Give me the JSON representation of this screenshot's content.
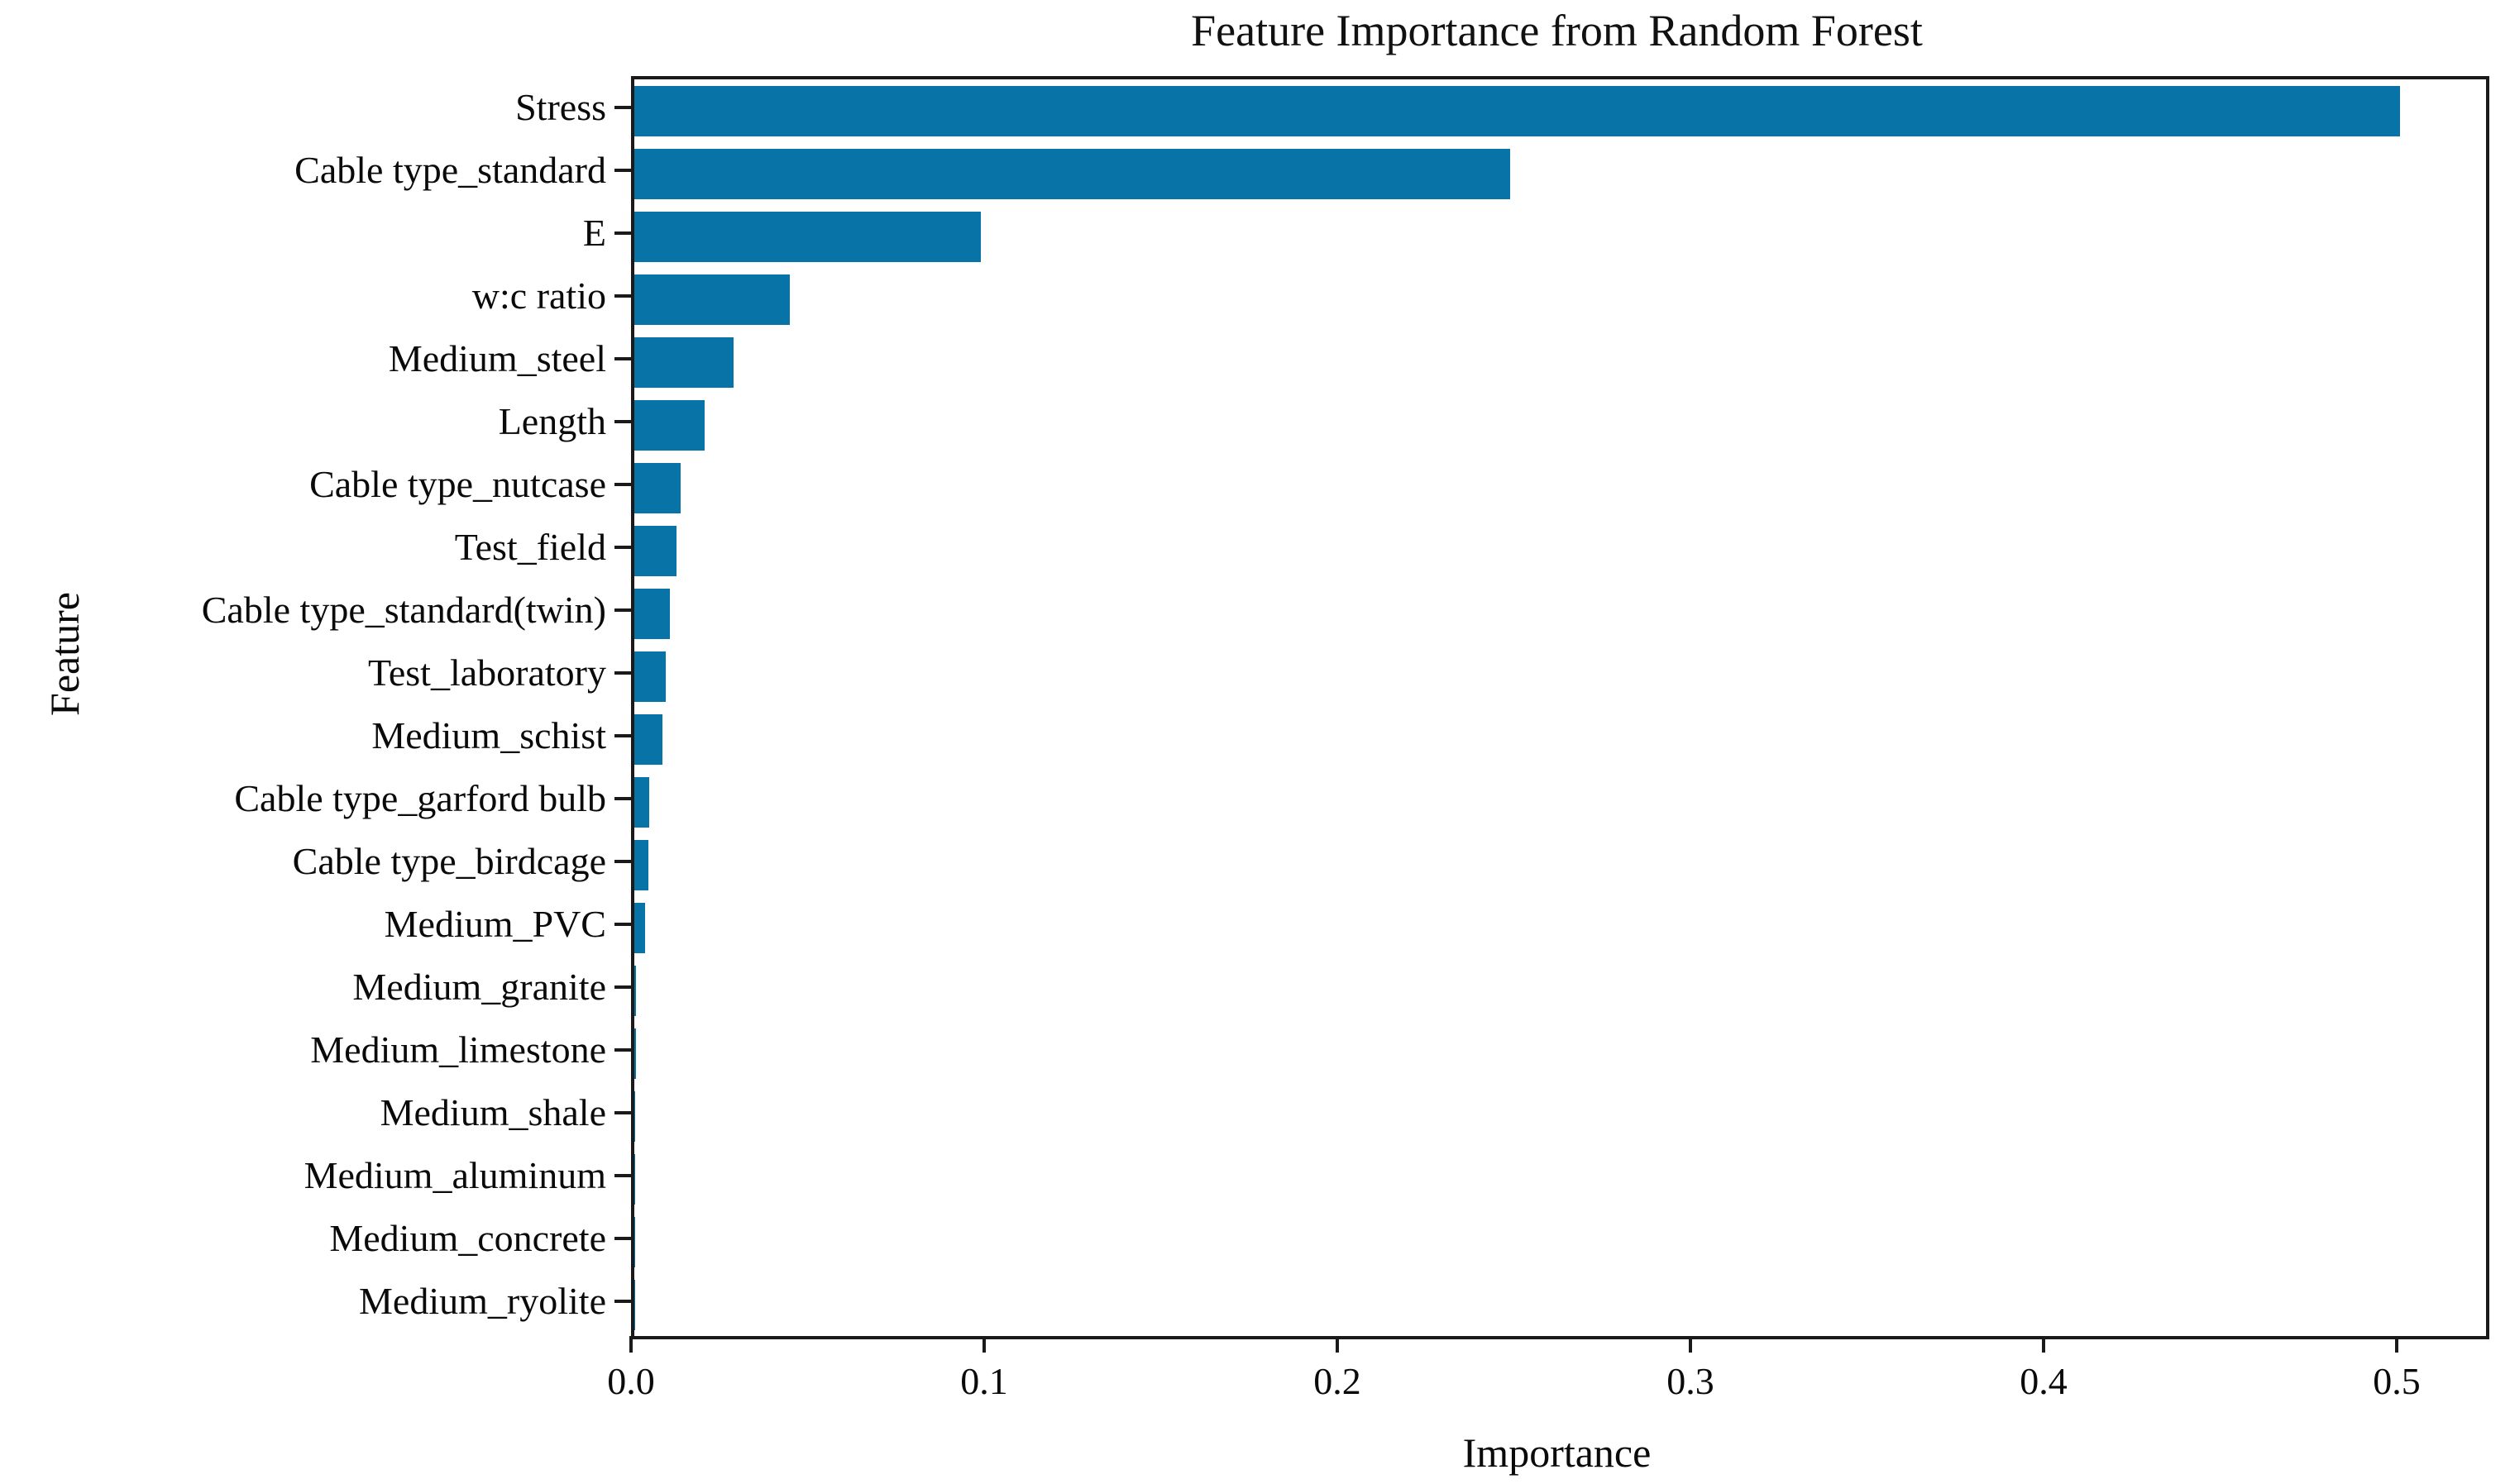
{
  "chart_data": {
    "type": "bar",
    "orientation": "horizontal",
    "title": "Feature Importance from Random Forest",
    "xlabel": "Importance",
    "ylabel": "Feature",
    "categories": [
      "Stress",
      "Cable type_standard",
      "E",
      "w:c ratio",
      "Medium_steel",
      "Length",
      "Cable type_nutcase",
      "Test_field",
      "Cable type_standard(twin)",
      "Test_laboratory",
      "Medium_schist",
      "Cable type_garford bulb",
      "Cable type_birdcage",
      "Medium_PVC",
      "Medium_granite",
      "Medium_limestone",
      "Medium_shale",
      "Medium_aluminum",
      "Medium_concrete",
      "Medium_ryolite"
    ],
    "values": [
      0.5,
      0.248,
      0.098,
      0.044,
      0.028,
      0.02,
      0.013,
      0.012,
      0.01,
      0.009,
      0.008,
      0.0042,
      0.004,
      0.003,
      0.0005,
      0.0004,
      0.0003,
      0.0002,
      0.0002,
      0.0001
    ],
    "xlim": [
      0,
      0.5243
    ],
    "xticks": [
      0.0,
      0.1,
      0.2,
      0.3,
      0.4,
      0.5
    ],
    "xtick_labels": [
      "0.0",
      "0.1",
      "0.2",
      "0.3",
      "0.4",
      "0.5"
    ],
    "grid": false,
    "legend": "none",
    "bar_color": "#0873a6",
    "spine_color": "#1a1a1a",
    "text_color": "#0a0a0a",
    "background_color": "#ffffff"
  }
}
